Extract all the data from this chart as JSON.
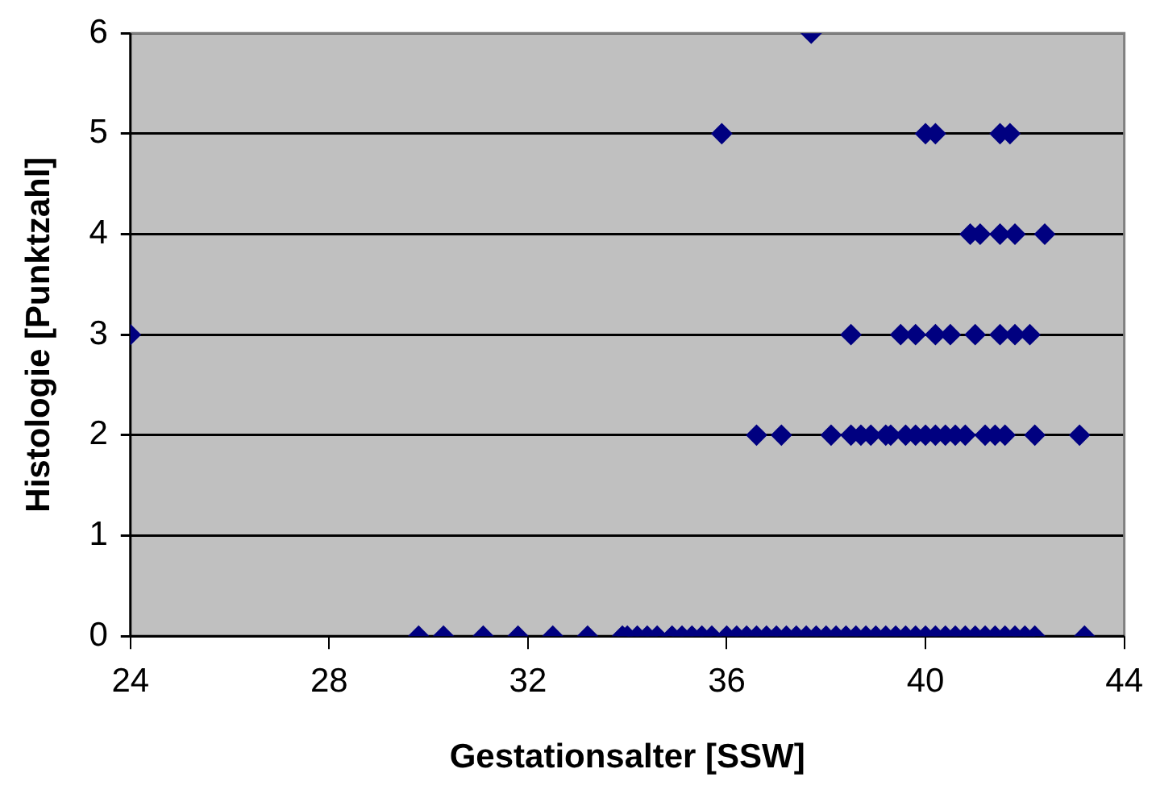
{
  "chart_data": {
    "type": "scatter",
    "xlabel": "Gestationsalter [SSW]",
    "ylabel": "Histologie [Punktzahl]",
    "xlim": [
      24,
      44
    ],
    "xticks": [
      24,
      28,
      32,
      36,
      40,
      44
    ],
    "ylim": [
      0,
      6
    ],
    "yticks": [
      0,
      1,
      2,
      3,
      4,
      5,
      6
    ],
    "grid": "y",
    "legend": false,
    "marker": "diamond",
    "series": [
      {
        "color": "#000080",
        "x": [
          37.7,
          35.9,
          40.0,
          40.2,
          41.5,
          41.7,
          40.9,
          41.1,
          41.5,
          41.8,
          42.4,
          24.0,
          38.5,
          39.5,
          39.8,
          40.2,
          40.5,
          41.0,
          41.5,
          41.8,
          42.1,
          36.6,
          37.1,
          38.1,
          38.5,
          38.7,
          38.9,
          39.2,
          39.3,
          39.6,
          39.8,
          40.0,
          40.2,
          40.4,
          40.6,
          40.8,
          41.2,
          41.4,
          41.6,
          42.2,
          43.1,
          29.8,
          30.3,
          31.1,
          31.8,
          32.5,
          33.2,
          33.9,
          34.0,
          34.2,
          34.4,
          34.6,
          34.9,
          35.1,
          35.3,
          35.5,
          35.7,
          36.0,
          36.2,
          36.4,
          36.6,
          36.8,
          37.0,
          37.2,
          37.4,
          37.6,
          37.8,
          38.0,
          38.2,
          38.4,
          38.6,
          38.8,
          39.0,
          39.2,
          39.4,
          39.6,
          39.8,
          40.0,
          40.2,
          40.4,
          40.6,
          40.8,
          41.0,
          41.2,
          41.4,
          41.6,
          41.8,
          42.0,
          42.2,
          43.2
        ],
        "values": [
          6,
          5,
          5,
          5,
          5,
          5,
          4,
          4,
          4,
          4,
          4,
          3,
          3,
          3,
          3,
          3,
          3,
          3,
          3,
          3,
          3,
          2,
          2,
          2,
          2,
          2,
          2,
          2,
          2,
          2,
          2,
          2,
          2,
          2,
          2,
          2,
          2,
          2,
          2,
          2,
          2,
          0,
          0,
          0,
          0,
          0,
          0,
          0,
          0,
          0,
          0,
          0,
          0,
          0,
          0,
          0,
          0,
          0,
          0,
          0,
          0,
          0,
          0,
          0,
          0,
          0,
          0,
          0,
          0,
          0,
          0,
          0,
          0,
          0,
          0,
          0,
          0,
          0,
          0,
          0,
          0,
          0,
          0,
          0,
          0,
          0,
          0,
          0,
          0,
          0
        ]
      }
    ]
  }
}
